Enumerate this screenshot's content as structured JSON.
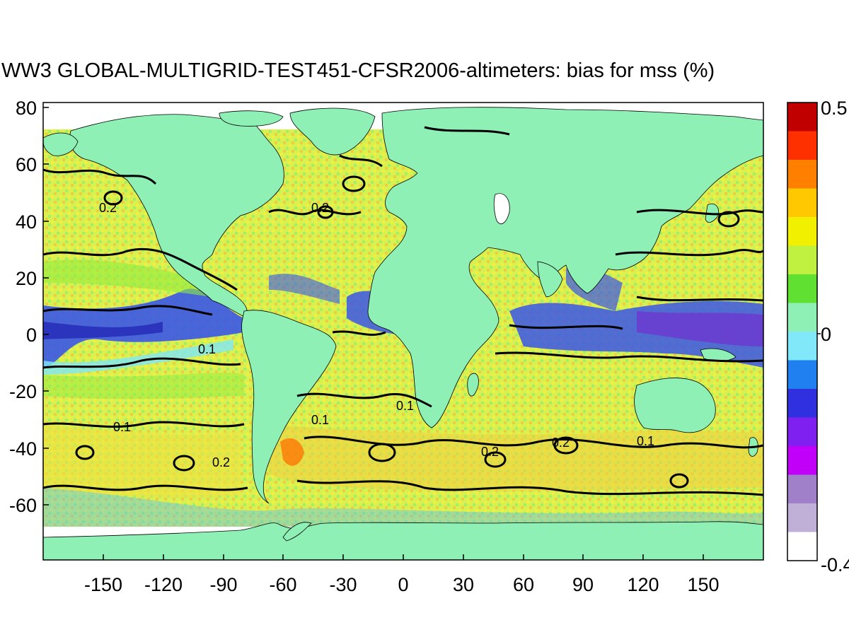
{
  "title": "WW3 GLOBAL-MULTIGRID-TEST451-CFSR2006-altimeters: bias for mss (%)",
  "map": {
    "lon_ticks": [
      "-150",
      "-120",
      "-90",
      "-60",
      "-30",
      "0",
      "30",
      "60",
      "90",
      "120",
      "150"
    ],
    "lat_ticks": [
      "80",
      "60",
      "40",
      "20",
      "0",
      "-20",
      "-40",
      "-60"
    ],
    "contour_labels": [
      "0.2",
      "0.1",
      "0.2",
      "0.1",
      "0.2",
      "0.1",
      "0.2",
      "0.1",
      "0.2",
      "0.1"
    ],
    "land_color": "#8ef0b4",
    "ocean_base_color": "#d6f050"
  },
  "colorbar": {
    "max_label": "0.5",
    "zero_label": "0",
    "min_label": "-0.4",
    "colors": [
      "#c00000",
      "#ff3000",
      "#ff8000",
      "#ffc800",
      "#f0f000",
      "#c0f040",
      "#60e030",
      "#8ef0b4",
      "#80e8f8",
      "#2080f0",
      "#3030e0",
      "#8020f0",
      "#c000f8",
      "#a080c8",
      "#c0b0d8",
      "#ffffff"
    ]
  }
}
